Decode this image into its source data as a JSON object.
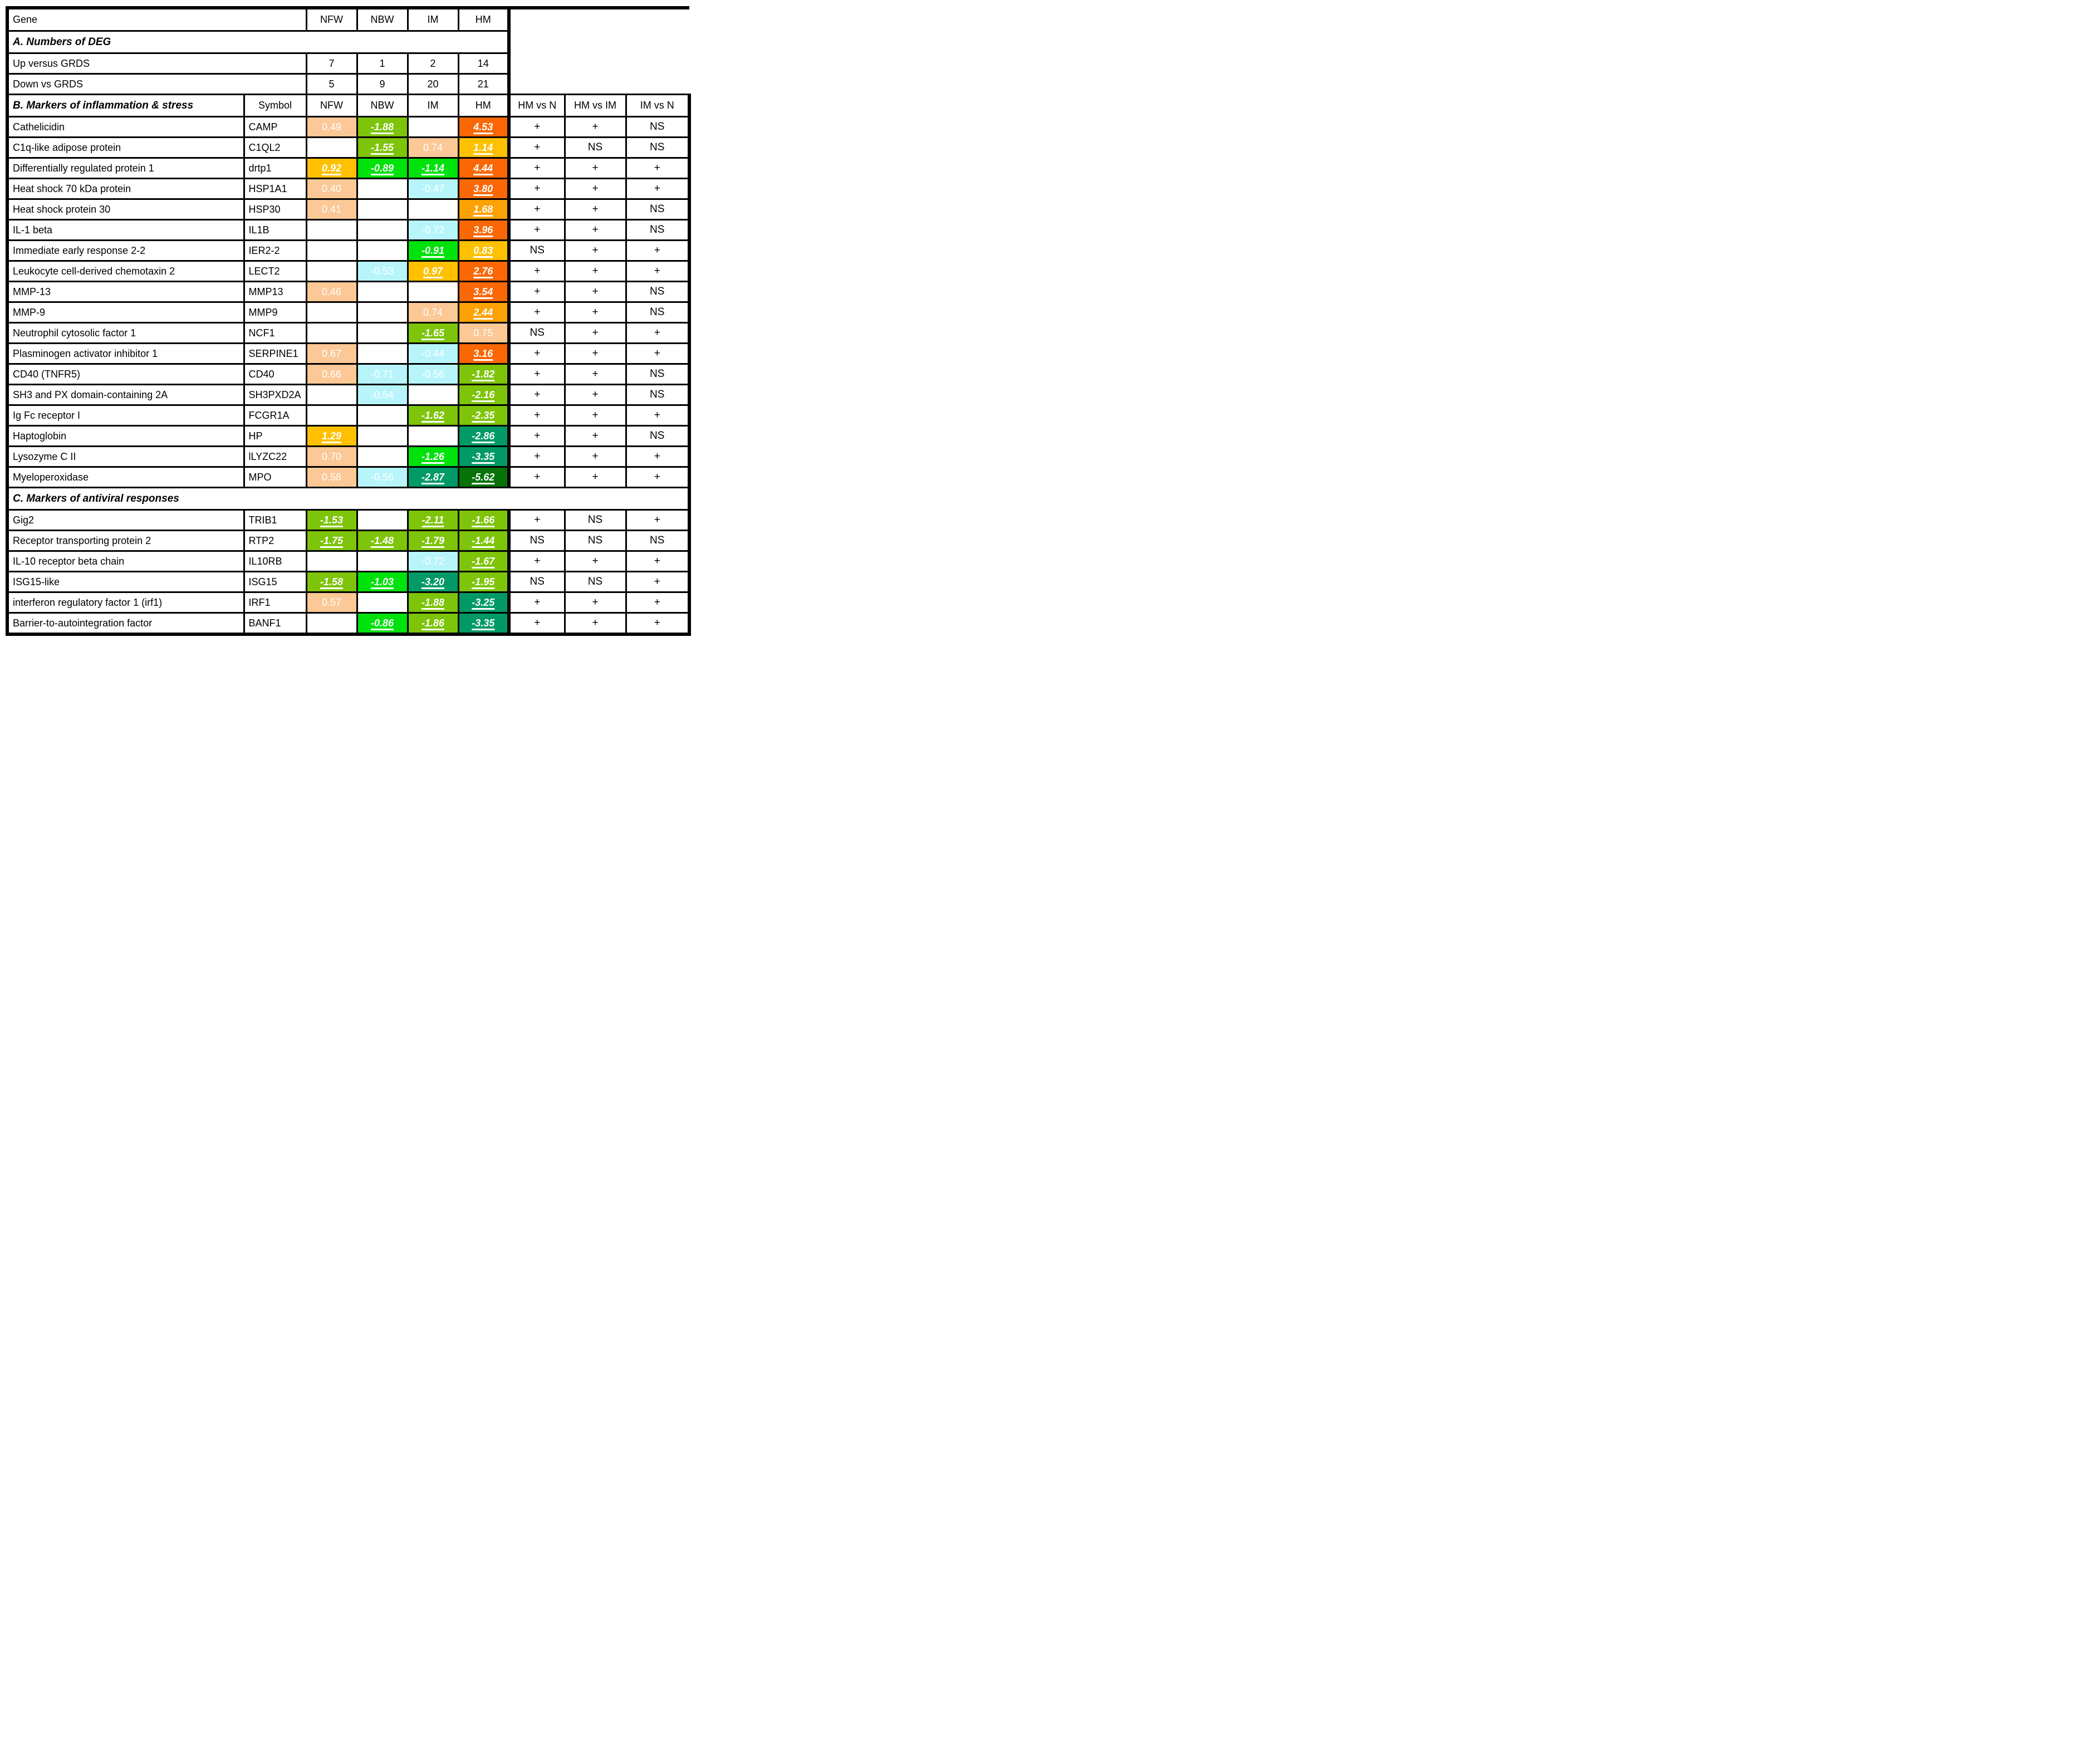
{
  "header": {
    "gene_label": "Gene",
    "symbol_label": "Symbol",
    "columns": [
      "NFW",
      "NBW",
      "IM",
      "HM"
    ],
    "comparison_columns": [
      "HM vs N",
      "HM vs IM",
      "IM vs N"
    ]
  },
  "colors": {
    "peach": "#FBC896",
    "cyan": "#B7F5FB",
    "gold": "#FFC000",
    "orange": "#FCA204",
    "red_orange": "#FA6705",
    "green": "#7DC40A",
    "bright_green": "#00E20C",
    "teal": "#019A66",
    "dark_green": "#077208",
    "grid": "#000000",
    "header_separator": "#D9D9D9"
  },
  "chart_data": {
    "type": "heatmap-table",
    "title": "Differentially expressed genes (DEG) heatmap table",
    "columns": [
      "NFW",
      "NBW",
      "IM",
      "HM"
    ],
    "comparison_columns": [
      "HM vs N",
      "HM vs IM",
      "IM vs N"
    ],
    "deg_counts": {
      "title": "A. Numbers of DEG",
      "rows": [
        {
          "label": "Up versus GRDS",
          "values": [
            7,
            1,
            2,
            14
          ]
        },
        {
          "label": "Down vs GRDS",
          "values": [
            5,
            9,
            20,
            21
          ]
        }
      ]
    },
    "sections": [
      {
        "title": "B. Markers of inflammation & stress",
        "rows": [
          {
            "gene": "Cathelicidin",
            "symbol": "CAMP",
            "cells": [
              {
                "v": "0.49",
                "c": "peach",
                "sig": false
              },
              {
                "v": "-1.88",
                "c": "green",
                "sig": true
              },
              null,
              {
                "v": "4.53",
                "c": "red_orange",
                "sig": true
              }
            ],
            "cmp": [
              "+",
              "+",
              "NS"
            ]
          },
          {
            "gene": "C1q-like adipose protein",
            "symbol": "C1QL2",
            "cells": [
              null,
              {
                "v": "-1.55",
                "c": "green",
                "sig": true
              },
              {
                "v": "0.74",
                "c": "peach",
                "sig": false
              },
              {
                "v": "1.14",
                "c": "gold",
                "sig": true
              }
            ],
            "cmp": [
              "+",
              "NS",
              "NS"
            ]
          },
          {
            "gene": "Differentially regulated protein 1",
            "symbol": "drtp1",
            "cells": [
              {
                "v": "0.92",
                "c": "gold",
                "sig": true
              },
              {
                "v": "-0.89",
                "c": "bright_green",
                "sig": true
              },
              {
                "v": "-1.14",
                "c": "bright_green",
                "sig": true
              },
              {
                "v": "4.44",
                "c": "red_orange",
                "sig": true
              }
            ],
            "cmp": [
              "+",
              "+",
              "+"
            ]
          },
          {
            "gene": "Heat shock 70 kDa protein",
            "symbol": "HSP1A1",
            "cells": [
              {
                "v": "0.40",
                "c": "peach",
                "sig": false
              },
              null,
              {
                "v": "-0.47",
                "c": "cyan",
                "sig": false
              },
              {
                "v": "3.80",
                "c": "red_orange",
                "sig": true
              }
            ],
            "cmp": [
              "+",
              "+",
              "+"
            ]
          },
          {
            "gene": "Heat shock protein 30",
            "symbol": "HSP30",
            "cells": [
              {
                "v": "0.41",
                "c": "peach",
                "sig": false
              },
              null,
              null,
              {
                "v": "1.68",
                "c": "orange",
                "sig": true
              }
            ],
            "cmp": [
              "+",
              "+",
              "NS"
            ]
          },
          {
            "gene": "IL-1 beta",
            "symbol": "IL1B",
            "cells": [
              null,
              null,
              {
                "v": "-0.72",
                "c": "cyan",
                "sig": false
              },
              {
                "v": "3.96",
                "c": "red_orange",
                "sig": true
              }
            ],
            "cmp": [
              "+",
              "+",
              "NS"
            ]
          },
          {
            "gene": "Immediate early response 2-2",
            "symbol": "IER2-2",
            "cells": [
              null,
              null,
              {
                "v": "-0.91",
                "c": "bright_green",
                "sig": true
              },
              {
                "v": "0.83",
                "c": "gold",
                "sig": true
              }
            ],
            "cmp": [
              "NS",
              "+",
              "+"
            ]
          },
          {
            "gene": "Leukocyte cell-derived chemotaxin 2",
            "symbol": "LECT2",
            "cells": [
              null,
              {
                "v": "-0.53",
                "c": "cyan",
                "sig": false
              },
              {
                "v": "0.97",
                "c": "gold",
                "sig": true
              },
              {
                "v": "2.76",
                "c": "red_orange",
                "sig": true
              }
            ],
            "cmp": [
              "+",
              "+",
              "+"
            ]
          },
          {
            "gene": "MMP-13",
            "symbol": "MMP13",
            "cells": [
              {
                "v": "0.46",
                "c": "peach",
                "sig": false
              },
              null,
              null,
              {
                "v": "3.54",
                "c": "red_orange",
                "sig": true
              }
            ],
            "cmp": [
              "+",
              "+",
              "NS"
            ]
          },
          {
            "gene": "MMP-9",
            "symbol": "MMP9",
            "cells": [
              null,
              null,
              {
                "v": "0.74",
                "c": "peach",
                "sig": false
              },
              {
                "v": "2.44",
                "c": "orange",
                "sig": true
              }
            ],
            "cmp": [
              "+",
              "+",
              "NS"
            ]
          },
          {
            "gene": "Neutrophil cytosolic factor 1",
            "symbol": "NCF1",
            "cells": [
              null,
              null,
              {
                "v": "-1.65",
                "c": "green",
                "sig": true
              },
              {
                "v": "0.75",
                "c": "peach",
                "sig": false
              }
            ],
            "cmp": [
              "NS",
              "+",
              "+"
            ]
          },
          {
            "gene": "Plasminogen activator inhibitor 1",
            "symbol": "SERPINE1",
            "cells": [
              {
                "v": "0.67",
                "c": "peach",
                "sig": false
              },
              null,
              {
                "v": "-0.44",
                "c": "cyan",
                "sig": false
              },
              {
                "v": "3.16",
                "c": "red_orange",
                "sig": true
              }
            ],
            "cmp": [
              "+",
              "+",
              "+"
            ]
          },
          {
            "gene": "CD40 (TNFR5)",
            "symbol": "CD40",
            "cells": [
              {
                "v": "0.66",
                "c": "peach",
                "sig": false
              },
              {
                "v": "-0.71",
                "c": "cyan",
                "sig": false
              },
              {
                "v": "-0.56",
                "c": "cyan",
                "sig": false
              },
              {
                "v": "-1.82",
                "c": "green",
                "sig": true
              }
            ],
            "cmp": [
              "+",
              "+",
              "NS"
            ]
          },
          {
            "gene": "SH3 and PX domain-containing 2A",
            "symbol": "SH3PXD2A",
            "cells": [
              null,
              {
                "v": "-0.54",
                "c": "cyan",
                "sig": false
              },
              null,
              {
                "v": "-2.16",
                "c": "green",
                "sig": true
              }
            ],
            "cmp": [
              "+",
              "+",
              "NS"
            ]
          },
          {
            "gene": "Ig Fc receptor I",
            "symbol": "FCGR1A",
            "cells": [
              null,
              null,
              {
                "v": "-1.62",
                "c": "green",
                "sig": true
              },
              {
                "v": "-2.35",
                "c": "green",
                "sig": true
              }
            ],
            "cmp": [
              "+",
              "+",
              "+"
            ]
          },
          {
            "gene": "Haptoglobin",
            "symbol": "HP",
            "cells": [
              {
                "v": "1.29",
                "c": "gold",
                "sig": true
              },
              null,
              null,
              {
                "v": "-2.86",
                "c": "teal",
                "sig": true
              }
            ],
            "cmp": [
              "+",
              "+",
              "NS"
            ]
          },
          {
            "gene": "Lysozyme C II",
            "symbol": "lLYZC22",
            "cells": [
              {
                "v": "0.70",
                "c": "peach",
                "sig": false
              },
              null,
              {
                "v": "-1.26",
                "c": "bright_green",
                "sig": true
              },
              {
                "v": "-3.35",
                "c": "teal",
                "sig": true
              }
            ],
            "cmp": [
              "+",
              "+",
              "+"
            ]
          },
          {
            "gene": "Myeloperoxidase",
            "symbol": "MPO",
            "cells": [
              {
                "v": "0.58",
                "c": "peach",
                "sig": false
              },
              {
                "v": "-0.56",
                "c": "cyan",
                "sig": false
              },
              {
                "v": "-2.87",
                "c": "teal",
                "sig": true
              },
              {
                "v": "-5.62",
                "c": "dark_green",
                "sig": true
              }
            ],
            "cmp": [
              "+",
              "+",
              "+"
            ]
          }
        ]
      },
      {
        "title": "C. Markers of antiviral responses",
        "rows": [
          {
            "gene": "Gig2",
            "symbol": "TRIB1",
            "cells": [
              {
                "v": "-1.53",
                "c": "green",
                "sig": true
              },
              null,
              {
                "v": "-2.11",
                "c": "green",
                "sig": true
              },
              {
                "v": "-1.66",
                "c": "green",
                "sig": true
              }
            ],
            "cmp": [
              "+",
              "NS",
              "+"
            ]
          },
          {
            "gene": "Receptor transporting protein 2",
            "symbol": "RTP2",
            "cells": [
              {
                "v": "-1.75",
                "c": "green",
                "sig": true
              },
              {
                "v": "-1.48",
                "c": "green",
                "sig": true
              },
              {
                "v": "-1.79",
                "c": "green",
                "sig": true
              },
              {
                "v": "-1.44",
                "c": "green",
                "sig": true
              }
            ],
            "cmp": [
              "NS",
              "NS",
              "NS"
            ]
          },
          {
            "gene": "IL-10 receptor beta chain",
            "symbol": "IL10RB",
            "cells": [
              null,
              null,
              {
                "v": "-0.72",
                "c": "cyan",
                "sig": false
              },
              {
                "v": "-1.67",
                "c": "green",
                "sig": true
              }
            ],
            "cmp": [
              "+",
              "+",
              "+"
            ]
          },
          {
            "gene": "ISG15-like",
            "symbol": "ISG15",
            "cells": [
              {
                "v": "-1.58",
                "c": "green",
                "sig": true
              },
              {
                "v": "-1.03",
                "c": "bright_green",
                "sig": true
              },
              {
                "v": "-3.20",
                "c": "teal",
                "sig": true
              },
              {
                "v": "-1.95",
                "c": "green",
                "sig": true
              }
            ],
            "cmp": [
              "NS",
              "NS",
              "+"
            ]
          },
          {
            "gene": "interferon regulatory factor 1 (irf1)",
            "symbol": "IRF1",
            "cells": [
              {
                "v": "0.57",
                "c": "peach",
                "sig": false
              },
              null,
              {
                "v": "-1.88",
                "c": "green",
                "sig": true
              },
              {
                "v": "-3.25",
                "c": "teal",
                "sig": true
              }
            ],
            "cmp": [
              "+",
              "+",
              "+"
            ]
          },
          {
            "gene": "Barrier-to-autointegration factor",
            "symbol": "BANF1",
            "cells": [
              null,
              {
                "v": "-0.86",
                "c": "bright_green",
                "sig": true
              },
              {
                "v": "-1.86",
                "c": "green",
                "sig": true
              },
              {
                "v": "-3.35",
                "c": "teal",
                "sig": true
              }
            ],
            "cmp": [
              "+",
              "+",
              "+"
            ]
          }
        ]
      }
    ]
  }
}
